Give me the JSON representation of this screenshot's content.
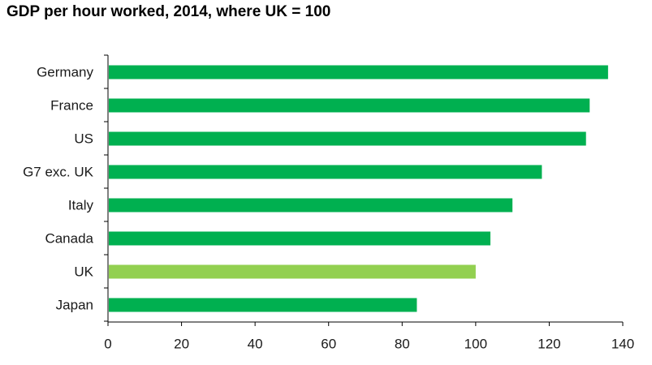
{
  "chart_data": {
    "type": "bar",
    "orientation": "horizontal",
    "title": "GDP per hour worked, 2014, where UK = 100",
    "categories": [
      "Germany",
      "France",
      "US",
      "G7 exc. UK",
      "Italy",
      "Canada",
      "UK",
      "Japan"
    ],
    "values": [
      136,
      131,
      130,
      118,
      110,
      104,
      100,
      84
    ],
    "highlight_category": "UK",
    "colors": {
      "bar": "#00b050",
      "highlight": "#92d050",
      "axis": "#000000"
    },
    "xlim": [
      0,
      140
    ],
    "xticks": [
      0,
      20,
      40,
      60,
      80,
      100,
      120,
      140
    ],
    "grid": false,
    "legend": "none"
  }
}
